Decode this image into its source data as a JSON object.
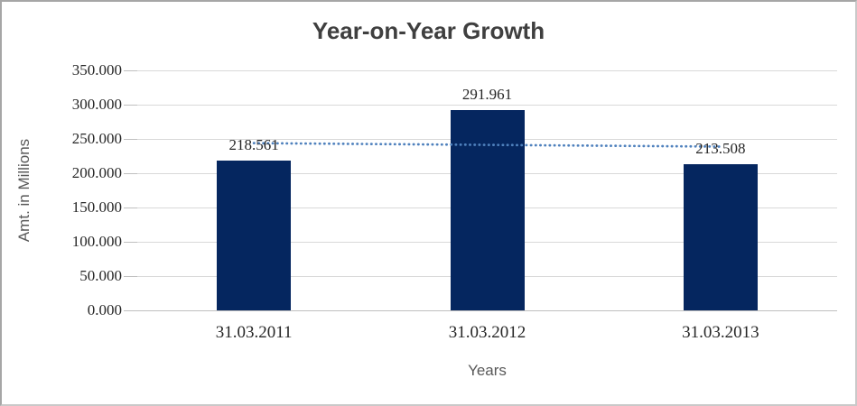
{
  "chart_data": {
    "type": "bar",
    "title": "Year-on-Year Growth",
    "categories": [
      "31.03.2011",
      "31.03.2012",
      "31.03.2013"
    ],
    "values": [
      218.561,
      291.961,
      213.508
    ],
    "data_labels": [
      "218.561",
      "291.961",
      "213.508"
    ],
    "xlabel": "Years",
    "ylabel": "Amt. in Millions",
    "ylim": [
      0,
      350
    ],
    "ytick_step": 50,
    "ytick_labels": [
      "350.000",
      "300.000",
      "250.000",
      "200.000",
      "150.000",
      "100.000",
      "50.000",
      "0.000"
    ],
    "grid": true,
    "legend": "none",
    "trendline": {
      "type": "linear",
      "style": "dotted",
      "color": "#4f81bd"
    },
    "colors": {
      "bar": "#05265f",
      "trendline": "#4f81bd",
      "gridline": "#d9d9d9",
      "axis_line": "#bfbfbf",
      "title_text": "#3f3f3f",
      "tick_text": "#262626",
      "axis_title_text": "#595959"
    }
  }
}
